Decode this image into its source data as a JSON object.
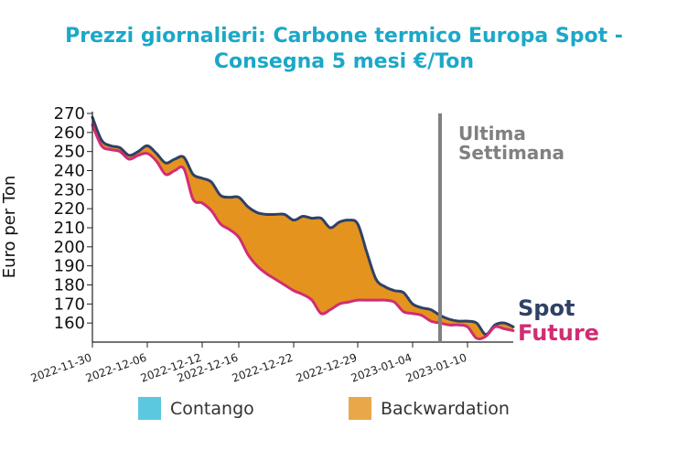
{
  "chart_data": {
    "type": "area",
    "title_line1": "Prezzi giornalieri: Carbone termico Europa Spot -",
    "title_line2": "Consegna 5 mesi €/Ton",
    "ylabel": "Euro per Ton",
    "ylim": [
      150,
      270
    ],
    "yticks": [
      160,
      170,
      180,
      190,
      200,
      210,
      220,
      230,
      240,
      250,
      260,
      270
    ],
    "xlim": [
      "2022-11-30",
      "2023-01-15"
    ],
    "xticks": [
      "2022-11-30",
      "2022-12-06",
      "2022-12-12",
      "2022-12-16",
      "2022-12-22",
      "2022-12-29",
      "2023-01-04",
      "2023-01-10"
    ],
    "series": [
      {
        "name": "Spot",
        "color": "#2F4165",
        "points": [
          [
            "2022-11-30",
            268
          ],
          [
            "2022-12-01",
            256
          ],
          [
            "2022-12-02",
            253
          ],
          [
            "2022-12-03",
            252
          ],
          [
            "2022-12-04",
            248
          ],
          [
            "2022-12-05",
            250
          ],
          [
            "2022-12-06",
            253
          ],
          [
            "2022-12-07",
            249
          ],
          [
            "2022-12-08",
            244
          ],
          [
            "2022-12-09",
            246
          ],
          [
            "2022-12-10",
            247
          ],
          [
            "2022-12-11",
            238
          ],
          [
            "2022-12-12",
            236
          ],
          [
            "2022-12-13",
            234
          ],
          [
            "2022-12-14",
            227
          ],
          [
            "2022-12-15",
            226
          ],
          [
            "2022-12-16",
            226
          ],
          [
            "2022-12-17",
            221
          ],
          [
            "2022-12-18",
            218
          ],
          [
            "2022-12-19",
            217
          ],
          [
            "2022-12-20",
            217
          ],
          [
            "2022-12-21",
            217
          ],
          [
            "2022-12-22",
            214
          ],
          [
            "2022-12-23",
            216
          ],
          [
            "2022-12-24",
            215
          ],
          [
            "2022-12-25",
            215
          ],
          [
            "2022-12-26",
            210
          ],
          [
            "2022-12-27",
            213
          ],
          [
            "2022-12-28",
            214
          ],
          [
            "2022-12-29",
            212
          ],
          [
            "2022-12-30",
            197
          ],
          [
            "2022-12-31",
            183
          ],
          [
            "2023-01-01",
            179
          ],
          [
            "2023-01-02",
            177
          ],
          [
            "2023-01-03",
            176
          ],
          [
            "2023-01-04",
            170
          ],
          [
            "2023-01-05",
            168
          ],
          [
            "2023-01-06",
            167
          ],
          [
            "2023-01-07",
            164
          ],
          [
            "2023-01-08",
            162
          ],
          [
            "2023-01-09",
            161
          ],
          [
            "2023-01-10",
            161
          ],
          [
            "2023-01-11",
            160
          ],
          [
            "2023-01-12",
            154
          ],
          [
            "2023-01-13",
            159
          ],
          [
            "2023-01-14",
            160
          ],
          [
            "2023-01-15",
            158
          ]
        ]
      },
      {
        "name": "Future",
        "color": "#D12D73",
        "points": [
          [
            "2022-11-30",
            264
          ],
          [
            "2022-12-01",
            253
          ],
          [
            "2022-12-02",
            251
          ],
          [
            "2022-12-03",
            250
          ],
          [
            "2022-12-04",
            246
          ],
          [
            "2022-12-05",
            248
          ],
          [
            "2022-12-06",
            249
          ],
          [
            "2022-12-07",
            245
          ],
          [
            "2022-12-08",
            238
          ],
          [
            "2022-12-09",
            240
          ],
          [
            "2022-12-10",
            241
          ],
          [
            "2022-12-11",
            225
          ],
          [
            "2022-12-12",
            223
          ],
          [
            "2022-12-13",
            219
          ],
          [
            "2022-12-14",
            212
          ],
          [
            "2022-12-15",
            209
          ],
          [
            "2022-12-16",
            205
          ],
          [
            "2022-12-17",
            196
          ],
          [
            "2022-12-18",
            190
          ],
          [
            "2022-12-19",
            186
          ],
          [
            "2022-12-20",
            183
          ],
          [
            "2022-12-21",
            180
          ],
          [
            "2022-12-22",
            177
          ],
          [
            "2022-12-23",
            175
          ],
          [
            "2022-12-24",
            172
          ],
          [
            "2022-12-25",
            165
          ],
          [
            "2022-12-26",
            167
          ],
          [
            "2022-12-27",
            170
          ],
          [
            "2022-12-28",
            171
          ],
          [
            "2022-12-29",
            172
          ],
          [
            "2022-12-30",
            172
          ],
          [
            "2022-12-31",
            172
          ],
          [
            "2023-01-01",
            172
          ],
          [
            "2023-01-02",
            171
          ],
          [
            "2023-01-03",
            166
          ],
          [
            "2023-01-04",
            165
          ],
          [
            "2023-01-05",
            164
          ],
          [
            "2023-01-06",
            161
          ],
          [
            "2023-01-07",
            160
          ],
          [
            "2023-01-08",
            159
          ],
          [
            "2023-01-09",
            159
          ],
          [
            "2023-01-10",
            158
          ],
          [
            "2023-01-11",
            152
          ],
          [
            "2023-01-12",
            153
          ],
          [
            "2023-01-13",
            158
          ],
          [
            "2023-01-14",
            157
          ],
          [
            "2023-01-15",
            156
          ]
        ]
      }
    ],
    "fill_colors": {
      "contango": "#5BC8E0",
      "backwardation": "#E4941E"
    },
    "legend": [
      {
        "label": "Contango",
        "color": "#5BC8E0"
      },
      {
        "label": "Backwardation",
        "color": "#E8A84A"
      }
    ],
    "vline": {
      "x": "2023-01-07",
      "color": "#808080",
      "label_line1": "Ultima",
      "label_line2": "Settimana"
    },
    "end_labels": [
      "Spot",
      "Future"
    ]
  }
}
